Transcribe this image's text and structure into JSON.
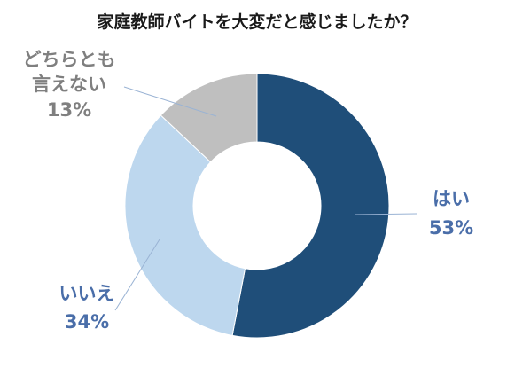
{
  "chart_data": {
    "type": "pie",
    "title": "家庭教師バイトを大変だと感じましたか？",
    "categories": [
      "はい",
      "いいえ",
      "どちらとも言えない"
    ],
    "values": [
      53,
      34,
      13
    ],
    "units": "%",
    "colors": [
      "#1f4e79",
      "#bdd7ee",
      "#bfbfbf"
    ],
    "label_colors": [
      "#4a6ea9",
      "#4a6ea9",
      "#7f7f7f"
    ],
    "donut": true,
    "legend": "none",
    "slice_labels": [
      {
        "lines": [
          "はい",
          "53%"
        ]
      },
      {
        "lines": [
          "いいえ",
          "34%"
        ]
      },
      {
        "lines": [
          "どちらとも",
          "言えない",
          "13%"
        ]
      }
    ]
  }
}
